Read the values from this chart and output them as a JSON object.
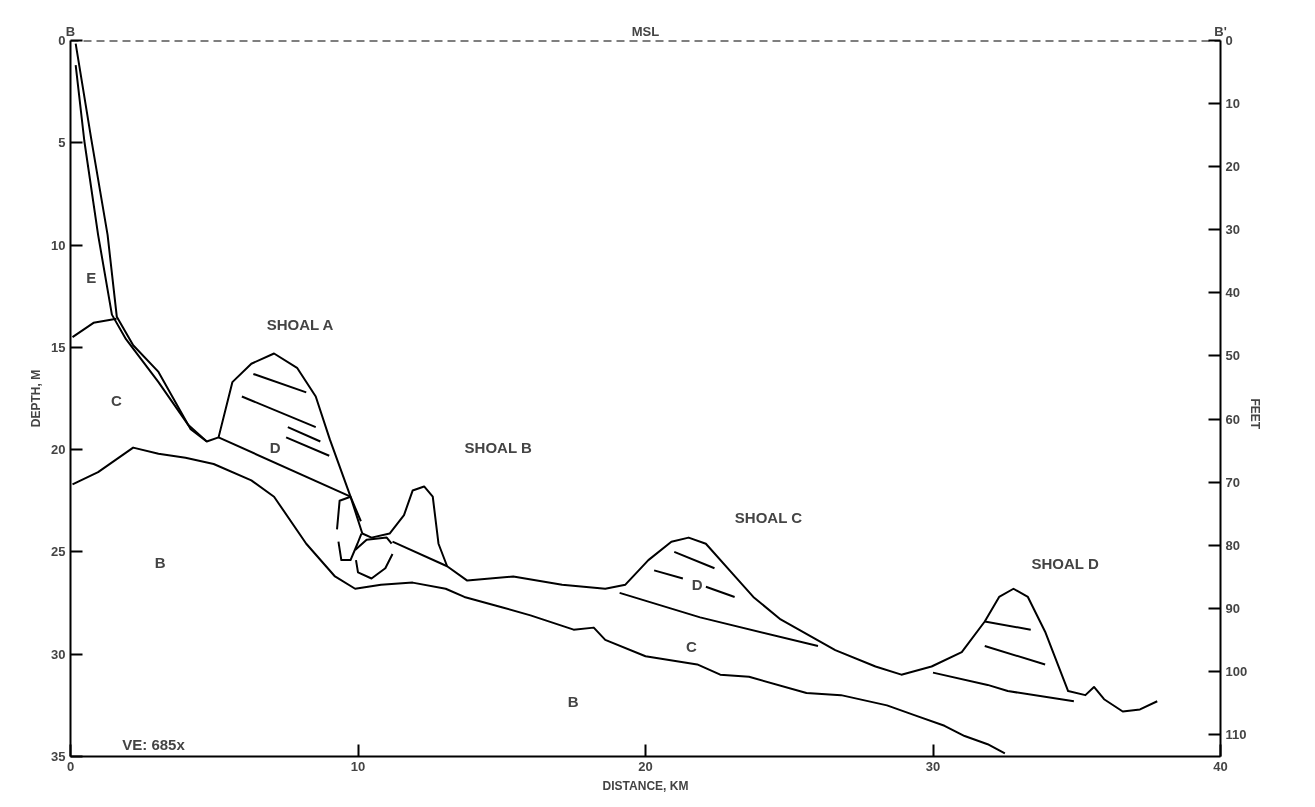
{
  "chart_data": {
    "type": "line",
    "xlabel": "DISTANCE, KM",
    "ylabel": "DEPTH, M",
    "y2label": "FEET",
    "xlim": [
      0,
      40
    ],
    "xticks": [
      0,
      10,
      20,
      30,
      40
    ],
    "ylim": [
      35,
      0
    ],
    "yticks": [
      0,
      5,
      10,
      15,
      20,
      25,
      30,
      35
    ],
    "y2lim": [
      113.5,
      0
    ],
    "y2ticks": [
      0,
      10,
      20,
      30,
      40,
      50,
      60,
      70,
      80,
      90,
      100,
      110
    ],
    "grid": false,
    "marker": "none",
    "line_style": "solid",
    "ref_lines": [
      {
        "axis": "y",
        "value": 0,
        "label": "MSL",
        "line_style": "dashed",
        "color": "#000000"
      }
    ],
    "series": [
      {
        "color": "#000000",
        "x": [
          0.18,
          0.72,
          1.29,
          1.61,
          2.18,
          3.06,
          4.18,
          4.74,
          5.15,
          5.63,
          6.29,
          7.08,
          7.88,
          8.53,
          9.02,
          9.74,
          10.15,
          10.47,
          11.1,
          11.6,
          11.9,
          12.3,
          12.6,
          12.8,
          13.1,
          13.8,
          15.4,
          17.1,
          18.6,
          19.3,
          20.1,
          20.9,
          21.5,
          22.1,
          23.05,
          23.75,
          24.7,
          26.6,
          28.0,
          28.9,
          29.95,
          31.0,
          31.8,
          32.3,
          32.8,
          33.3,
          33.9,
          34.7,
          35.3,
          35.6,
          35.95,
          36.6,
          37.2,
          37.8
        ],
        "values": [
          0.15,
          4.8,
          9.5,
          13.5,
          14.9,
          16.2,
          19.0,
          19.6,
          19.4,
          16.7,
          15.8,
          15.3,
          16.0,
          17.4,
          19.5,
          22.3,
          24.1,
          24.3,
          24.1,
          23.2,
          22.0,
          21.8,
          22.3,
          24.6,
          25.7,
          26.4,
          26.2,
          26.6,
          26.8,
          26.6,
          25.4,
          24.5,
          24.3,
          24.6,
          26.1,
          27.2,
          28.3,
          29.8,
          30.6,
          31.0,
          30.6,
          29.9,
          28.4,
          27.2,
          26.8,
          27.2,
          28.9,
          31.8,
          32.0,
          31.6,
          32.2,
          32.8,
          32.7,
          32.3
        ]
      },
      {
        "color": "#000000",
        "x": [
          0.18,
          0.48,
          0.96,
          1.44,
          1.93,
          3.06,
          4.1,
          4.74
        ],
        "values": [
          1.2,
          4.9,
          9.5,
          13.4,
          14.6,
          16.7,
          18.8,
          19.6
        ]
      },
      {
        "color": "#000000",
        "x": [
          0.07,
          0.8,
          1.6
        ],
        "values": [
          14.5,
          13.8,
          13.6
        ]
      },
      {
        "color": "#000000",
        "x": [
          0.07,
          0.96,
          2.18,
          3.06,
          4.0,
          4.98,
          6.29,
          7.08,
          8.2,
          9.2,
          9.9,
          10.8,
          11.9,
          13.05,
          13.7,
          15.0,
          16.0,
          17.5,
          18.2,
          18.6,
          20.0,
          21.8,
          22.6,
          23.6,
          25.6,
          26.8,
          28.4,
          29.4,
          30.4,
          31.1,
          31.9,
          32.5
        ],
        "values": [
          21.7,
          21.1,
          19.9,
          20.2,
          20.4,
          20.7,
          21.5,
          22.3,
          24.6,
          26.2,
          26.8,
          26.6,
          26.5,
          26.8,
          27.2,
          27.7,
          28.1,
          28.8,
          28.7,
          29.3,
          30.1,
          30.5,
          31.0,
          31.1,
          31.9,
          32.0,
          32.5,
          33.0,
          33.5,
          34.0,
          34.4,
          34.85
        ]
      },
      {
        "color": "#000000",
        "x": [
          5.15,
          9.74
        ],
        "values": [
          19.4,
          22.3
        ]
      },
      {
        "color": "#000000",
        "x": [
          11.2,
          13.1
        ],
        "values": [
          24.5,
          25.7
        ]
      },
      {
        "color": "#000000",
        "x": [
          19.1,
          21.9,
          26.0
        ],
        "values": [
          27.0,
          28.2,
          29.6
        ]
      },
      {
        "color": "#000000",
        "x": [
          30.0,
          31.9,
          32.6,
          34.9
        ],
        "values": [
          30.9,
          31.5,
          31.8,
          32.3
        ]
      },
      {
        "color": "#000000",
        "x": [
          6.36,
          8.2
        ],
        "values": [
          16.3,
          17.2
        ]
      },
      {
        "color": "#000000",
        "x": [
          5.96,
          8.53
        ],
        "values": [
          17.4,
          18.9
        ]
      },
      {
        "color": "#000000",
        "x": [
          7.56,
          8.69
        ],
        "values": [
          18.9,
          19.6
        ]
      },
      {
        "color": "#000000",
        "x": [
          7.5,
          9.0
        ],
        "values": [
          19.4,
          20.3
        ]
      },
      {
        "color": "#000000",
        "x": [
          21.0,
          22.4
        ],
        "values": [
          25.0,
          25.8
        ]
      },
      {
        "color": "#000000",
        "x": [
          20.3,
          21.3
        ],
        "values": [
          25.9,
          26.3
        ]
      },
      {
        "color": "#000000",
        "x": [
          22.1,
          23.1
        ],
        "values": [
          26.7,
          27.2
        ]
      },
      {
        "color": "#000000",
        "x": [
          31.8,
          33.4
        ],
        "values": [
          28.4,
          28.8
        ]
      },
      {
        "color": "#000000",
        "x": [
          31.8,
          33.9
        ],
        "values": [
          29.6,
          30.5
        ]
      },
      {
        "color": "#000000",
        "x": [
          9.27,
          9.36,
          9.74,
          10.1
        ],
        "values": [
          23.9,
          22.5,
          22.3,
          23.5
        ]
      },
      {
        "color": "#000000",
        "x": [
          9.32,
          9.42,
          9.74,
          9.98,
          10.12
        ],
        "values": [
          24.5,
          25.4,
          25.4,
          24.6,
          24.1
        ]
      },
      {
        "color": "#000000",
        "x": [
          9.9,
          10.3,
          11.0,
          11.17
        ],
        "values": [
          24.9,
          24.4,
          24.3,
          24.6
        ]
      },
      {
        "color": "#000000",
        "x": [
          9.93,
          10.0,
          10.47,
          10.95,
          11.2
        ],
        "values": [
          25.4,
          26.0,
          26.3,
          25.8,
          25.1
        ]
      }
    ],
    "annotations": [
      "B",
      "B'",
      "E",
      "C",
      "B",
      "D",
      "SHOAL A",
      "SHOAL B",
      "SHOAL C",
      "SHOAL D",
      "D",
      "C",
      "B",
      "VE: 685x"
    ]
  }
}
